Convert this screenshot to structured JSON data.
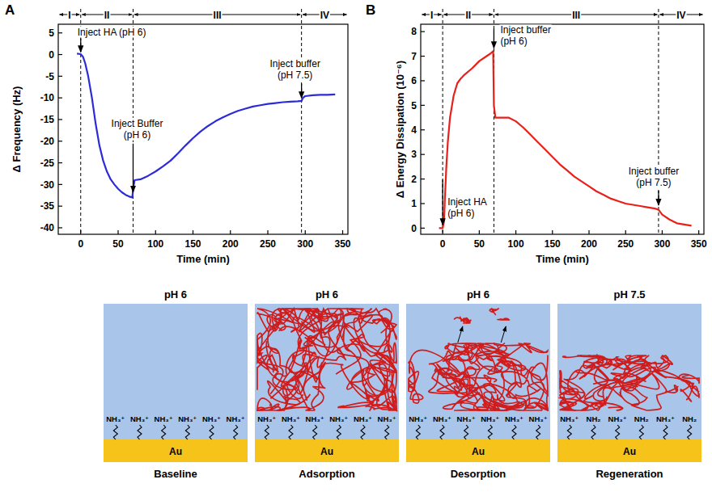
{
  "chart_data": [
    {
      "type": "line",
      "panel": "A",
      "x_label": "Time (min)",
      "y_label": "Δ Frequency (Hz)",
      "color": "#2b2bd9",
      "xlim": [
        -30,
        357
      ],
      "ylim": [
        -41.5,
        7
      ],
      "xticks": [
        0,
        50,
        100,
        150,
        200,
        250,
        300,
        350
      ],
      "yticks": [
        -40,
        -35,
        -30,
        -25,
        -20,
        -15,
        -10,
        -5,
        0,
        5
      ],
      "x": [
        -5,
        0,
        3,
        6,
        10,
        15,
        20,
        25,
        30,
        35,
        40,
        45,
        50,
        55,
        60,
        65,
        69,
        70,
        72,
        80,
        90,
        100,
        110,
        120,
        130,
        140,
        150,
        160,
        170,
        180,
        190,
        200,
        210,
        220,
        230,
        240,
        250,
        260,
        270,
        280,
        290,
        295,
        297,
        300,
        310,
        320,
        330,
        340
      ],
      "values": [
        0.2,
        0.1,
        -0.5,
        -2,
        -5,
        -10,
        -16,
        -21,
        -24.5,
        -27,
        -28.8,
        -30,
        -31,
        -31.8,
        -32.4,
        -32.8,
        -33,
        -31,
        -29,
        -28.8,
        -28,
        -27,
        -25.8,
        -24.5,
        -22.8,
        -21,
        -19.3,
        -17.8,
        -16.5,
        -15.4,
        -14.5,
        -13.7,
        -13,
        -12.5,
        -12,
        -11.7,
        -11.4,
        -11.2,
        -11,
        -10.9,
        -10.8,
        -10.7,
        -10,
        -9.6,
        -9.4,
        -9.3,
        -9.3,
        -9.2
      ],
      "regions": [
        {
          "label": "I",
          "start": -30,
          "end": 0
        },
        {
          "label": "II",
          "start": 0,
          "end": 70
        },
        {
          "label": "III",
          "start": 70,
          "end": 295
        },
        {
          "label": "IV",
          "start": 295,
          "end": 357
        }
      ],
      "annotations": [
        {
          "lines": [
            "Inject HA (pH 6)"
          ],
          "x": 0,
          "y": 0
        },
        {
          "lines": [
            "Inject Buffer",
            "(pH 6)"
          ],
          "x": 70,
          "y": -32.5
        },
        {
          "lines": [
            "Inject buffer",
            "(pH 7.5)"
          ],
          "x": 295,
          "y": -10.8
        }
      ]
    },
    {
      "type": "line",
      "panel": "B",
      "x_label": "Time (min)",
      "y_label": "Δ Energy Dissipation (10⁻⁶)",
      "color": "#e8201a",
      "xlim": [
        -30,
        357
      ],
      "ylim": [
        -0.25,
        8.3
      ],
      "xticks": [
        0,
        50,
        100,
        150,
        200,
        250,
        300,
        350
      ],
      "yticks": [
        0,
        1,
        2,
        3,
        4,
        5,
        6,
        7,
        8
      ],
      "x": [
        -5,
        0,
        2,
        3,
        5,
        7,
        10,
        15,
        20,
        25,
        30,
        40,
        50,
        60,
        65,
        69,
        70,
        72,
        80,
        90,
        100,
        110,
        120,
        130,
        140,
        150,
        160,
        170,
        180,
        190,
        200,
        210,
        220,
        230,
        240,
        250,
        260,
        270,
        280,
        290,
        295,
        300,
        310,
        320,
        330,
        340
      ],
      "values": [
        0,
        0,
        0.3,
        1.2,
        2.5,
        3.5,
        4.5,
        5.4,
        5.9,
        6.1,
        6.25,
        6.5,
        6.8,
        7.0,
        7.1,
        7.2,
        5.0,
        4.5,
        4.5,
        4.5,
        4.35,
        4.1,
        3.8,
        3.5,
        3.2,
        2.9,
        2.6,
        2.35,
        2.1,
        1.9,
        1.7,
        1.5,
        1.35,
        1.2,
        1.1,
        1.0,
        0.95,
        0.9,
        0.85,
        0.8,
        0.75,
        0.55,
        0.35,
        0.2,
        0.15,
        0.1
      ],
      "regions": [
        {
          "label": "I",
          "start": -30,
          "end": 0
        },
        {
          "label": "II",
          "start": 0,
          "end": 70
        },
        {
          "label": "III",
          "start": 70,
          "end": 295
        },
        {
          "label": "IV",
          "start": 295,
          "end": 357
        }
      ],
      "annotations": [
        {
          "lines": [
            "Inject HA",
            "(pH 6)"
          ],
          "x": 0,
          "y": 0
        },
        {
          "lines": [
            "Inject buffer",
            "(pH 6)"
          ],
          "x": 70,
          "y": 7.2
        },
        {
          "lines": [
            "Inject buffer",
            "(pH 7.5)"
          ],
          "x": 295,
          "y": 0.8
        }
      ]
    }
  ],
  "diagram": {
    "panels": [
      {
        "title": "pH 6",
        "caption": "Baseline",
        "substrate": "Au",
        "groups": [
          "NH₃⁺",
          "NH₃⁺",
          "NH₃⁺",
          "NH₃⁺",
          "NH₃⁺",
          "NH₃⁺"
        ]
      },
      {
        "title": "pH 6",
        "caption": "Adsorption",
        "substrate": "Au",
        "groups": [
          "NH₃⁺",
          "NH₃⁺",
          "NH₃⁺",
          "NH₃⁺",
          "NH₃⁺",
          "NH₃⁺"
        ]
      },
      {
        "title": "pH 6",
        "caption": "Desorption",
        "substrate": "Au",
        "groups": [
          "NH₃⁺",
          "NH₃⁺",
          "NH₃⁺",
          "NH₃⁺",
          "NH₃⁺",
          "NH₃⁺"
        ]
      },
      {
        "title": "pH 7.5",
        "caption": "Regeneration",
        "substrate": "Au",
        "groups": [
          "NH₃⁺",
          "NH₂",
          "NH₃⁺",
          "NH₂",
          "NH₃⁺",
          "NH₂"
        ]
      }
    ]
  }
}
